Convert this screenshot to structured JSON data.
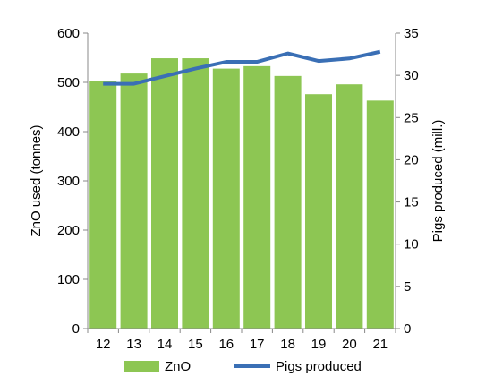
{
  "chart_data": {
    "type": "bar",
    "categories": [
      "12",
      "13",
      "14",
      "15",
      "16",
      "17",
      "18",
      "19",
      "20",
      "21"
    ],
    "series": [
      {
        "name": "ZnO",
        "type": "bar",
        "axis": "left",
        "color": "#8dc653",
        "values": [
          503,
          518,
          549,
          549,
          528,
          533,
          513,
          476,
          496,
          463
        ]
      },
      {
        "name": "Pigs produced",
        "type": "line",
        "axis": "right",
        "color": "#3a6fb5",
        "values": [
          29.0,
          29.0,
          29.9,
          30.8,
          31.6,
          31.6,
          32.6,
          31.7,
          32.0,
          32.8
        ]
      }
    ],
    "ylabel": "ZnO used (tonnes)",
    "y2label": "Pigs produced (mill.)",
    "ylim": [
      0,
      600
    ],
    "y2lim": [
      0,
      35
    ],
    "yticks": [
      "0",
      "100",
      "200",
      "300",
      "400",
      "500",
      "600"
    ],
    "y2ticks": [
      "0",
      "5",
      "10",
      "15",
      "20",
      "25",
      "30",
      "35"
    ],
    "legend_position": "bottom",
    "grid": false
  }
}
